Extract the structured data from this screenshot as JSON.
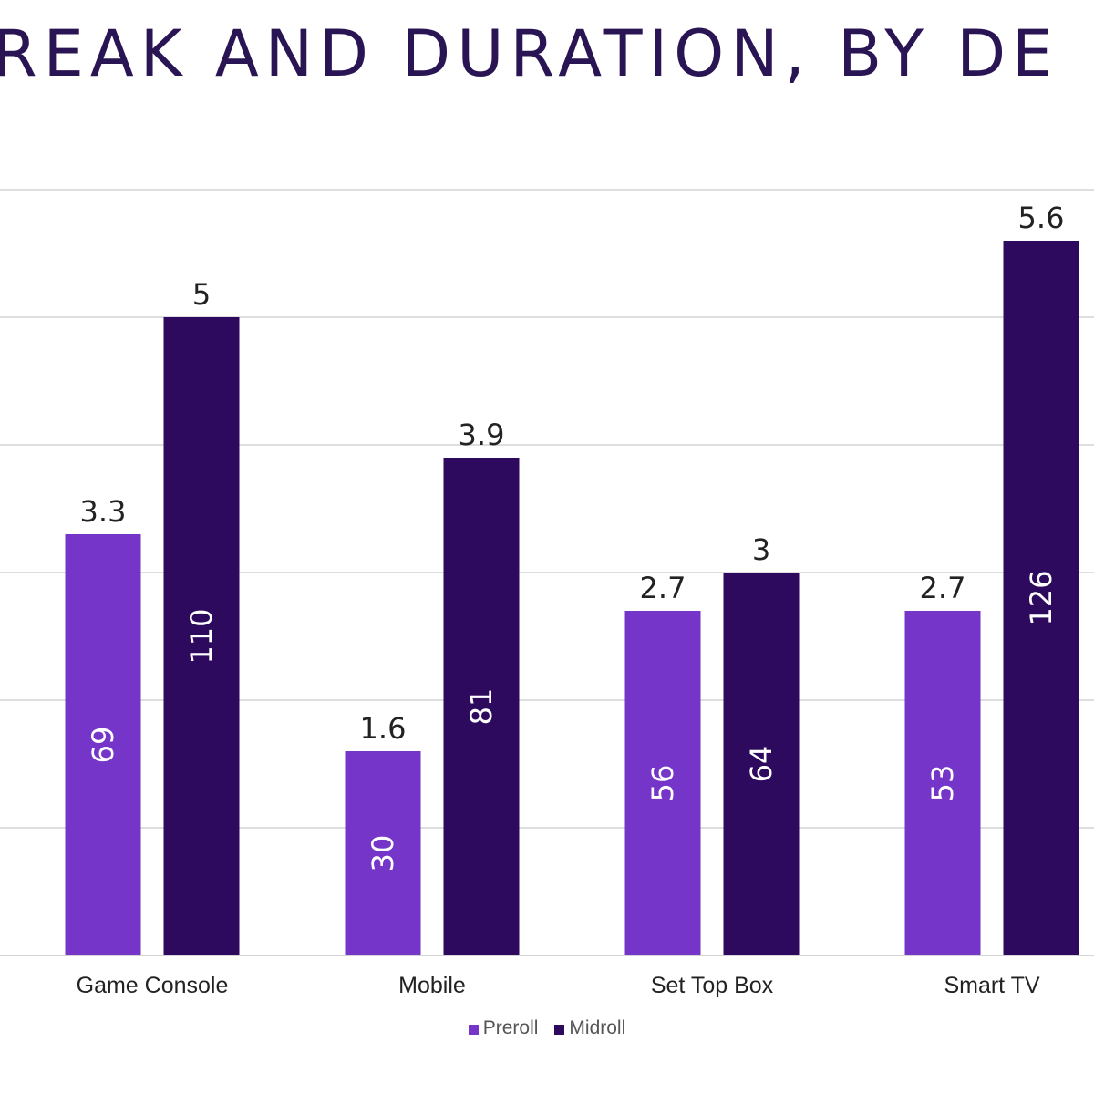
{
  "chart_data": {
    "type": "bar",
    "title": "REAK AND DURATION, BY DE",
    "categories": [
      "Game Console",
      "Mobile",
      "Set Top Box",
      "Smart TV"
    ],
    "series": [
      {
        "name": "Preroll",
        "color": "#7535c9",
        "values": [
          3.3,
          1.6,
          2.7,
          2.7
        ],
        "inner_labels": [
          "69",
          "30",
          "56",
          "53"
        ]
      },
      {
        "name": "Midroll",
        "color": "#2d0a5e",
        "values": [
          5,
          3.9,
          3,
          5.6
        ],
        "inner_labels": [
          "110",
          "81",
          "64",
          "126"
        ]
      }
    ],
    "top_labels": [
      [
        "3.3",
        "1.6",
        "2.7",
        "2.7"
      ],
      [
        "5",
        "3.9",
        "3",
        "5.6"
      ]
    ],
    "ylim": [
      0,
      6
    ],
    "grid": true,
    "legend": "bottom-center"
  }
}
